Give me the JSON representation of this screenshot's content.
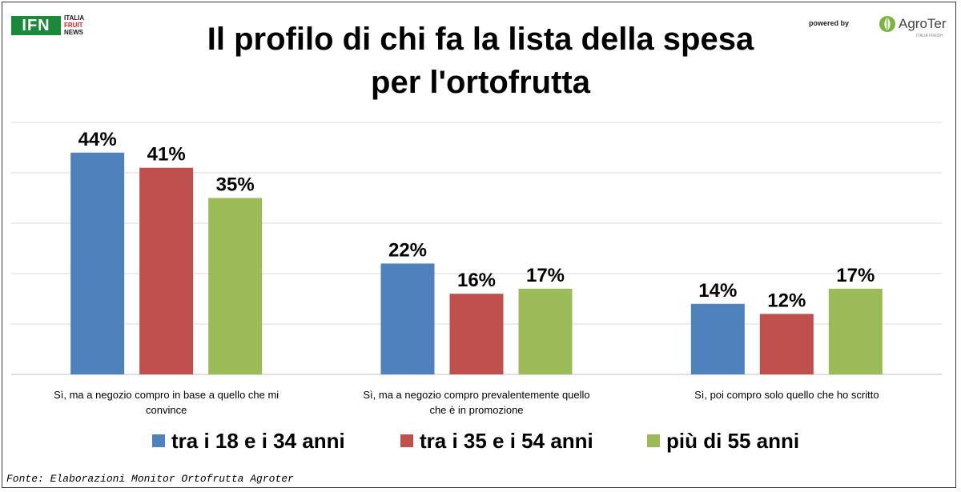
{
  "header": {
    "logo_left": {
      "main": "IFN",
      "line1": "ITALIA",
      "line2": "FRUIT",
      "line3": "NEWS"
    },
    "powered_by": "powered by",
    "logo_right": {
      "name": "AgroTer",
      "tagline": "ITALIA FRESH"
    }
  },
  "chart_data": {
    "type": "bar",
    "title": "Il profilo di chi fa la lista della spesa per l'ortofrutta",
    "title_lines": [
      "Il profilo di chi fa la lista della spesa",
      "per l'ortofrutta"
    ],
    "categories": [
      "Sì, ma a negozio compro in base a quello che mi convince",
      "Sì, ma a negozio compro prevalentemente quello che è in promozione",
      "Sì, poi compro solo quello che ho scritto"
    ],
    "category_lines": [
      [
        "Sì, ma a negozio compro in base a quello che mi",
        "convince"
      ],
      [
        "Sì, ma a negozio compro prevalentemente quello",
        "che è in promozione"
      ],
      [
        "Sì, poi compro solo quello che ho scritto"
      ]
    ],
    "series": [
      {
        "name": "tra i 18 e i 34 anni",
        "values": [
          44,
          22,
          14
        ],
        "labels": [
          "44%",
          "22%",
          "14%"
        ],
        "color": "#4f81bd"
      },
      {
        "name": "tra i 35 e i 54 anni",
        "values": [
          41,
          16,
          12
        ],
        "labels": [
          "41%",
          "16%",
          "12%"
        ],
        "color": "#c0504d"
      },
      {
        "name": "più di 55 anni",
        "values": [
          35,
          17,
          17
        ],
        "labels": [
          "35%",
          "17%",
          "17%"
        ],
        "color": "#9bbb59"
      }
    ],
    "ylim": [
      0,
      50
    ],
    "y_gridlines": [
      10,
      20,
      30,
      40,
      50
    ],
    "grid": true,
    "legend_position": "bottom",
    "xlabel": "",
    "ylabel": ""
  },
  "source": "Fonte: Elaborazioni Monitor Ortofrutta Agroter"
}
